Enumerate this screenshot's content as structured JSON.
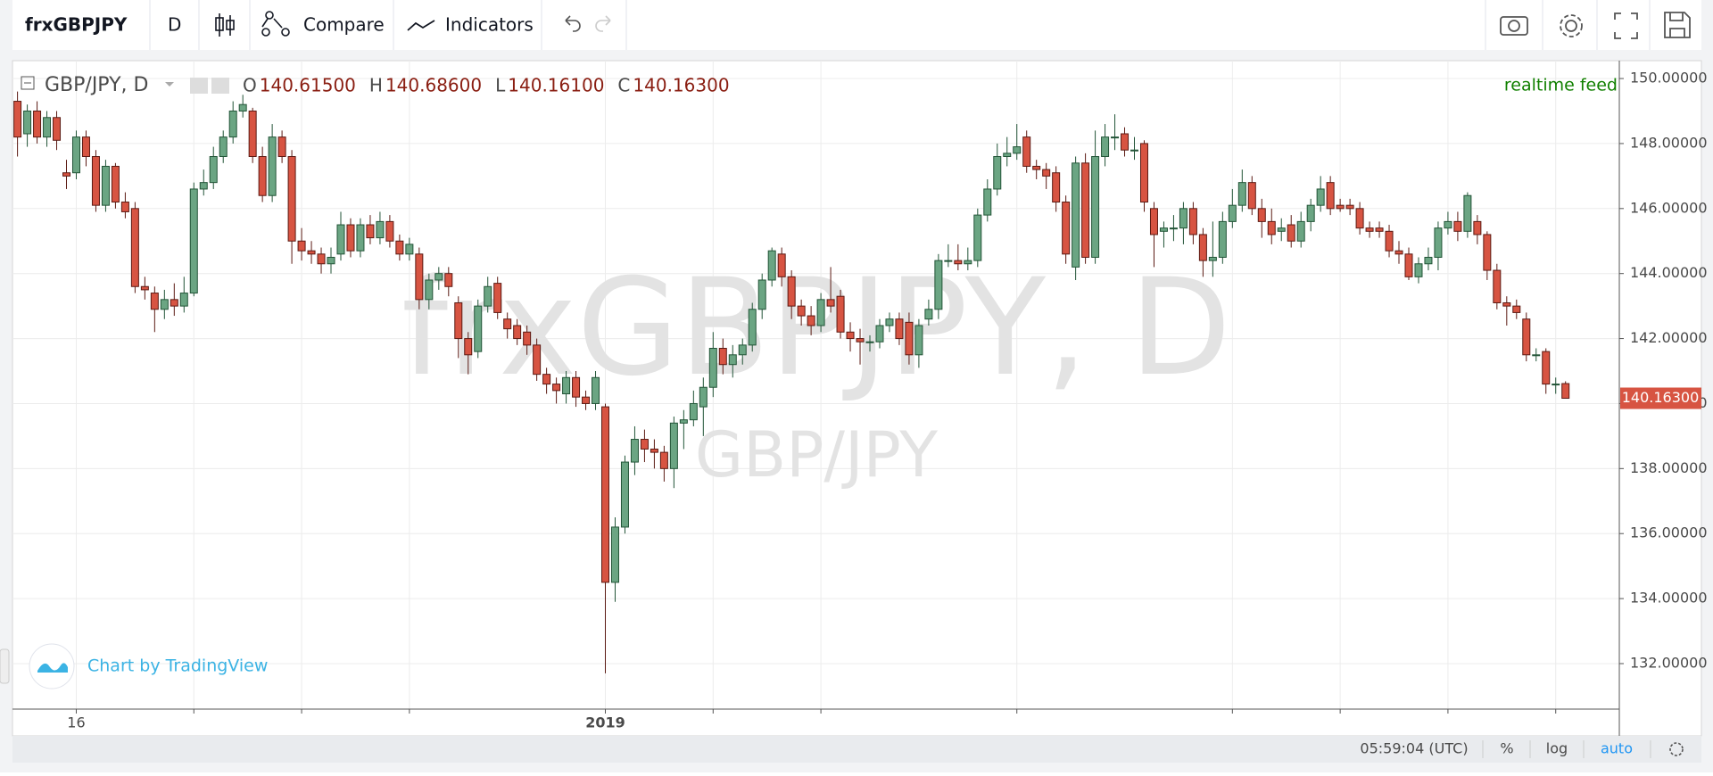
{
  "toolbar": {
    "symbol": "frxGBPJPY",
    "interval": "D",
    "compare": "Compare",
    "indicators": "Indicators"
  },
  "chart_data": {
    "type": "candlestick",
    "legend_title": "GBP/JPY, D",
    "ohlc_header": [
      {
        "key": "O",
        "value": "140.61500"
      },
      {
        "key": "H",
        "value": "140.68600"
      },
      {
        "key": "L",
        "value": "140.16100"
      },
      {
        "key": "C",
        "value": "140.16300"
      }
    ],
    "feed_label": "realtime feed",
    "watermark": "frxGBPJPY, D",
    "watermark_sub": "GBP/JPY",
    "attribution": "Chart by TradingView",
    "last_price_label": "140.16300",
    "up_color": "#6ba583",
    "down_color": "#d75442",
    "up_border": "#225437",
    "down_border": "#5b1a13",
    "grid": true,
    "ylim": [
      130.6,
      150.55
    ],
    "yticks": [
      {
        "value": 132,
        "label": "132.00000"
      },
      {
        "value": 134,
        "label": "134.00000"
      },
      {
        "value": 136,
        "label": "136.00000"
      },
      {
        "value": 138,
        "label": "138.00000"
      },
      {
        "value": 140,
        "label": "140.00000"
      },
      {
        "value": 142,
        "label": "142.00000"
      },
      {
        "value": 144,
        "label": "144.00000"
      },
      {
        "value": 146,
        "label": "146.00000"
      },
      {
        "value": 148,
        "label": "148.00000"
      },
      {
        "value": 150,
        "label": "150.00000"
      }
    ],
    "xticks": [
      {
        "value": 6,
        "label": "16"
      },
      {
        "value": 18,
        "label": null
      },
      {
        "value": 29,
        "label": null
      },
      {
        "value": 40,
        "label": null
      },
      {
        "value": 60,
        "label": "2019"
      },
      {
        "value": 71,
        "label": null
      },
      {
        "value": 82,
        "label": null
      },
      {
        "value": 102,
        "label": null
      },
      {
        "value": 124,
        "label": null
      },
      {
        "value": 135,
        "label": null
      },
      {
        "value": 146,
        "label": null
      },
      {
        "value": 157,
        "label": null
      }
    ],
    "candles": [
      [
        149.3,
        149.6,
        147.6,
        148.2
      ],
      [
        148.3,
        149.2,
        147.9,
        149.0
      ],
      [
        149.0,
        149.3,
        148.0,
        148.2
      ],
      [
        148.2,
        149.0,
        147.9,
        148.8
      ],
      [
        148.8,
        149.0,
        147.8,
        148.1
      ],
      [
        147.1,
        147.5,
        146.6,
        147.0
      ],
      [
        147.1,
        148.4,
        146.9,
        148.2
      ],
      [
        148.2,
        148.4,
        147.3,
        147.6
      ],
      [
        147.6,
        147.8,
        145.9,
        146.1
      ],
      [
        146.1,
        147.5,
        145.9,
        147.3
      ],
      [
        147.3,
        147.4,
        146.0,
        146.2
      ],
      [
        146.2,
        146.5,
        145.7,
        145.9
      ],
      [
        146.0,
        146.2,
        143.4,
        143.6
      ],
      [
        143.6,
        143.9,
        143.2,
        143.5
      ],
      [
        143.4,
        143.6,
        142.2,
        142.9
      ],
      [
        142.9,
        143.5,
        142.6,
        143.2
      ],
      [
        143.2,
        143.7,
        142.7,
        143.0
      ],
      [
        143.0,
        143.9,
        142.8,
        143.4
      ],
      [
        143.4,
        146.8,
        143.3,
        146.6
      ],
      [
        146.6,
        147.2,
        146.4,
        146.8
      ],
      [
        146.8,
        147.9,
        146.6,
        147.6
      ],
      [
        147.6,
        148.4,
        147.4,
        148.2
      ],
      [
        148.2,
        149.3,
        148.0,
        149.0
      ],
      [
        149.0,
        149.5,
        148.8,
        149.2
      ],
      [
        149.0,
        149.1,
        147.4,
        147.6
      ],
      [
        147.6,
        147.9,
        146.2,
        146.4
      ],
      [
        146.4,
        148.6,
        146.2,
        148.2
      ],
      [
        148.2,
        148.4,
        147.4,
        147.6
      ],
      [
        147.6,
        147.8,
        144.3,
        145.0
      ],
      [
        145.0,
        145.4,
        144.4,
        144.7
      ],
      [
        144.7,
        145.0,
        144.3,
        144.6
      ],
      [
        144.6,
        144.8,
        144.0,
        144.3
      ],
      [
        144.3,
        144.8,
        144.0,
        144.5
      ],
      [
        144.6,
        145.9,
        144.4,
        145.5
      ],
      [
        145.5,
        145.7,
        144.5,
        144.7
      ],
      [
        144.7,
        145.7,
        144.5,
        145.5
      ],
      [
        145.5,
        145.8,
        144.9,
        145.1
      ],
      [
        145.1,
        145.9,
        144.9,
        145.6
      ],
      [
        145.6,
        145.8,
        144.8,
        145.0
      ],
      [
        145.0,
        145.2,
        144.4,
        144.6
      ],
      [
        144.6,
        145.1,
        144.4,
        144.9
      ],
      [
        144.6,
        144.8,
        142.9,
        143.2
      ],
      [
        143.2,
        144.0,
        142.9,
        143.8
      ],
      [
        143.8,
        144.2,
        143.5,
        144.0
      ],
      [
        144.0,
        144.2,
        143.3,
        143.6
      ],
      [
        143.1,
        143.3,
        141.4,
        142.0
      ],
      [
        142.0,
        142.2,
        140.9,
        141.5
      ],
      [
        141.6,
        143.2,
        141.4,
        143.0
      ],
      [
        143.0,
        143.9,
        142.8,
        143.6
      ],
      [
        143.7,
        143.9,
        142.6,
        142.8
      ],
      [
        142.6,
        142.8,
        142.0,
        142.3
      ],
      [
        142.4,
        142.6,
        141.8,
        142.0
      ],
      [
        142.2,
        142.4,
        141.5,
        141.8
      ],
      [
        141.8,
        142.0,
        140.7,
        140.9
      ],
      [
        140.9,
        141.1,
        140.3,
        140.6
      ],
      [
        140.6,
        140.8,
        140.0,
        140.4
      ],
      [
        140.3,
        141.0,
        140.0,
        140.8
      ],
      [
        140.8,
        141.0,
        139.9,
        140.2
      ],
      [
        140.2,
        140.4,
        139.8,
        140.0
      ],
      [
        140.0,
        141.0,
        139.8,
        140.8
      ],
      [
        139.9,
        140.0,
        131.7,
        134.5
      ],
      [
        134.5,
        136.5,
        133.9,
        136.2
      ],
      [
        136.2,
        138.4,
        136.0,
        138.2
      ],
      [
        138.2,
        139.3,
        137.8,
        138.9
      ],
      [
        138.9,
        139.2,
        138.2,
        138.6
      ],
      [
        138.6,
        138.9,
        138.0,
        138.5
      ],
      [
        138.5,
        138.7,
        137.6,
        138.0
      ],
      [
        138.0,
        139.6,
        137.4,
        139.4
      ],
      [
        139.4,
        139.8,
        138.6,
        139.5
      ],
      [
        139.5,
        140.4,
        139.3,
        140.0
      ],
      [
        139.9,
        140.8,
        139.0,
        140.5
      ],
      [
        140.5,
        142.2,
        140.2,
        141.7
      ],
      [
        141.7,
        142.0,
        140.9,
        141.2
      ],
      [
        141.2,
        141.8,
        140.8,
        141.5
      ],
      [
        141.5,
        142.0,
        141.2,
        141.8
      ],
      [
        141.8,
        143.1,
        141.6,
        142.9
      ],
      [
        142.9,
        144.0,
        142.6,
        143.8
      ],
      [
        143.8,
        144.8,
        143.6,
        144.7
      ],
      [
        144.6,
        144.8,
        143.6,
        143.9
      ],
      [
        143.9,
        144.1,
        142.6,
        143.0
      ],
      [
        143.0,
        143.2,
        142.4,
        142.7
      ],
      [
        142.7,
        143.0,
        142.1,
        142.4
      ],
      [
        142.4,
        143.4,
        142.2,
        143.2
      ],
      [
        143.2,
        144.2,
        142.8,
        143.0
      ],
      [
        143.3,
        143.5,
        142.0,
        142.2
      ],
      [
        142.2,
        142.5,
        141.6,
        142.0
      ],
      [
        142.0,
        142.3,
        141.2,
        141.9
      ],
      [
        141.9,
        142.1,
        141.6,
        141.9
      ],
      [
        141.9,
        142.6,
        141.7,
        142.4
      ],
      [
        142.4,
        142.8,
        142.2,
        142.6
      ],
      [
        142.6,
        142.8,
        141.8,
        142.0
      ],
      [
        142.5,
        142.8,
        141.2,
        141.5
      ],
      [
        141.5,
        142.6,
        141.1,
        142.4
      ],
      [
        142.6,
        143.2,
        142.4,
        142.9
      ],
      [
        142.9,
        144.6,
        142.6,
        144.4
      ],
      [
        144.4,
        144.9,
        144.2,
        144.4
      ],
      [
        144.4,
        144.9,
        144.1,
        144.3
      ],
      [
        144.3,
        144.8,
        144.1,
        144.4
      ],
      [
        144.4,
        146.0,
        144.2,
        145.8
      ],
      [
        145.8,
        146.9,
        145.6,
        146.6
      ],
      [
        146.6,
        148.0,
        146.4,
        147.6
      ],
      [
        147.6,
        148.2,
        147.3,
        147.7
      ],
      [
        147.7,
        148.6,
        147.5,
        147.9
      ],
      [
        148.2,
        148.4,
        147.1,
        147.3
      ],
      [
        147.3,
        147.5,
        146.9,
        147.2
      ],
      [
        147.2,
        147.4,
        146.6,
        147.0
      ],
      [
        147.1,
        147.3,
        145.9,
        146.2
      ],
      [
        146.2,
        146.4,
        144.3,
        144.6
      ],
      [
        144.2,
        147.6,
        143.8,
        147.4
      ],
      [
        147.4,
        147.7,
        144.3,
        144.5
      ],
      [
        144.5,
        148.4,
        144.3,
        147.6
      ],
      [
        147.6,
        148.6,
        147.3,
        148.2
      ],
      [
        148.2,
        148.9,
        147.8,
        148.2
      ],
      [
        148.3,
        148.5,
        147.6,
        147.8
      ],
      [
        147.8,
        148.2,
        147.5,
        147.8
      ],
      [
        148.0,
        148.1,
        145.9,
        146.2
      ],
      [
        146.0,
        146.2,
        144.2,
        145.2
      ],
      [
        145.3,
        145.6,
        144.8,
        145.4
      ],
      [
        145.4,
        145.8,
        145.0,
        145.4
      ],
      [
        145.4,
        146.2,
        144.9,
        146.0
      ],
      [
        146.0,
        146.2,
        144.9,
        145.2
      ],
      [
        145.2,
        145.4,
        143.9,
        144.4
      ],
      [
        144.4,
        145.6,
        143.9,
        144.5
      ],
      [
        144.5,
        145.9,
        144.3,
        145.6
      ],
      [
        145.6,
        146.6,
        145.4,
        146.1
      ],
      [
        146.1,
        147.2,
        145.9,
        146.8
      ],
      [
        146.8,
        147.0,
        145.8,
        146.0
      ],
      [
        146.0,
        146.3,
        145.1,
        145.6
      ],
      [
        145.6,
        146.0,
        144.9,
        145.2
      ],
      [
        145.3,
        145.7,
        145.0,
        145.4
      ],
      [
        145.5,
        145.8,
        144.8,
        145.0
      ],
      [
        145.0,
        145.9,
        144.8,
        145.6
      ],
      [
        145.6,
        146.3,
        145.3,
        146.1
      ],
      [
        146.1,
        147.0,
        145.9,
        146.6
      ],
      [
        146.8,
        147.0,
        145.8,
        146.0
      ],
      [
        146.1,
        146.3,
        145.9,
        146.0
      ],
      [
        146.1,
        146.3,
        145.8,
        146.0
      ],
      [
        146.0,
        146.2,
        145.2,
        145.4
      ],
      [
        145.4,
        145.6,
        145.1,
        145.3
      ],
      [
        145.4,
        145.6,
        145.1,
        145.3
      ],
      [
        145.3,
        145.5,
        144.5,
        144.7
      ],
      [
        144.7,
        145.0,
        144.3,
        144.6
      ],
      [
        144.6,
        144.8,
        143.8,
        143.9
      ],
      [
        143.9,
        144.5,
        143.7,
        144.3
      ],
      [
        144.3,
        144.8,
        144.1,
        144.5
      ],
      [
        144.5,
        145.6,
        144.1,
        145.4
      ],
      [
        145.4,
        145.9,
        145.2,
        145.6
      ],
      [
        145.6,
        145.9,
        145.0,
        145.3
      ],
      [
        145.3,
        146.5,
        145.1,
        146.4
      ],
      [
        145.6,
        145.8,
        144.9,
        145.2
      ],
      [
        145.2,
        145.3,
        143.8,
        144.1
      ],
      [
        144.1,
        144.3,
        142.9,
        143.1
      ],
      [
        143.1,
        143.3,
        142.4,
        143.0
      ],
      [
        143.0,
        143.2,
        142.6,
        142.8
      ],
      [
        142.6,
        142.8,
        141.3,
        141.5
      ],
      [
        141.5,
        141.7,
        141.3,
        141.5
      ],
      [
        141.6,
        141.7,
        140.3,
        140.6
      ],
      [
        140.6,
        140.8,
        140.3,
        140.6
      ],
      [
        140.615,
        140.686,
        140.161,
        140.163
      ]
    ]
  },
  "footer": {
    "time": "05:59:04 (UTC)",
    "percent": "%",
    "log": "log",
    "auto": "auto"
  }
}
